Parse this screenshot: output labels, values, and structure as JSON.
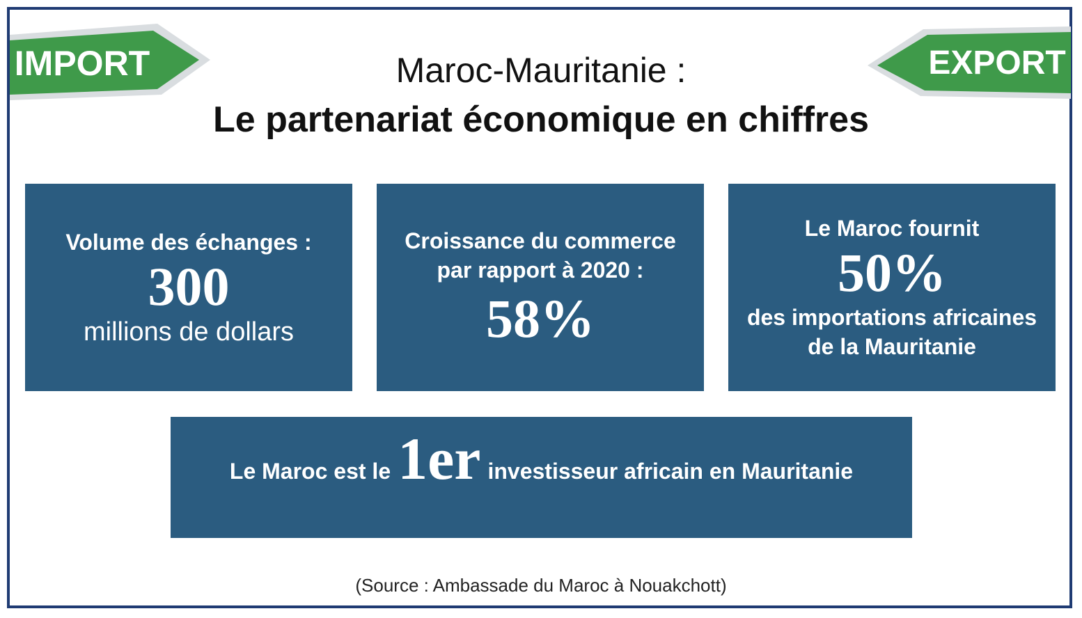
{
  "signs": {
    "import": "IMPORT",
    "export": "EXPORT",
    "color_green": "#3f9a4a",
    "color_border": "#d9dde0"
  },
  "title": {
    "line1": "Maroc-Mauritanie :",
    "line2": "Le partenariat économique en chiffres"
  },
  "cards": {
    "volume": {
      "label": "Volume des échanges :",
      "value": "300",
      "unit": "millions de dollars"
    },
    "growth": {
      "label_line1": "Croissance du commerce",
      "label_line2": "par rapport à 2020 :",
      "value": "58%"
    },
    "supply": {
      "label": "Le Maroc fournit",
      "value": "50%",
      "desc_line1": "des importations africaines",
      "desc_line2": "de la Mauritanie"
    },
    "investor": {
      "before": "Le Maroc est le",
      "rank": "1er",
      "after": "investisseur africain en Mauritanie"
    }
  },
  "source": "(Source : Ambassade du Maroc à Nouakchott)",
  "colors": {
    "box": "#2b5c80",
    "frame": "#1f3b73"
  }
}
